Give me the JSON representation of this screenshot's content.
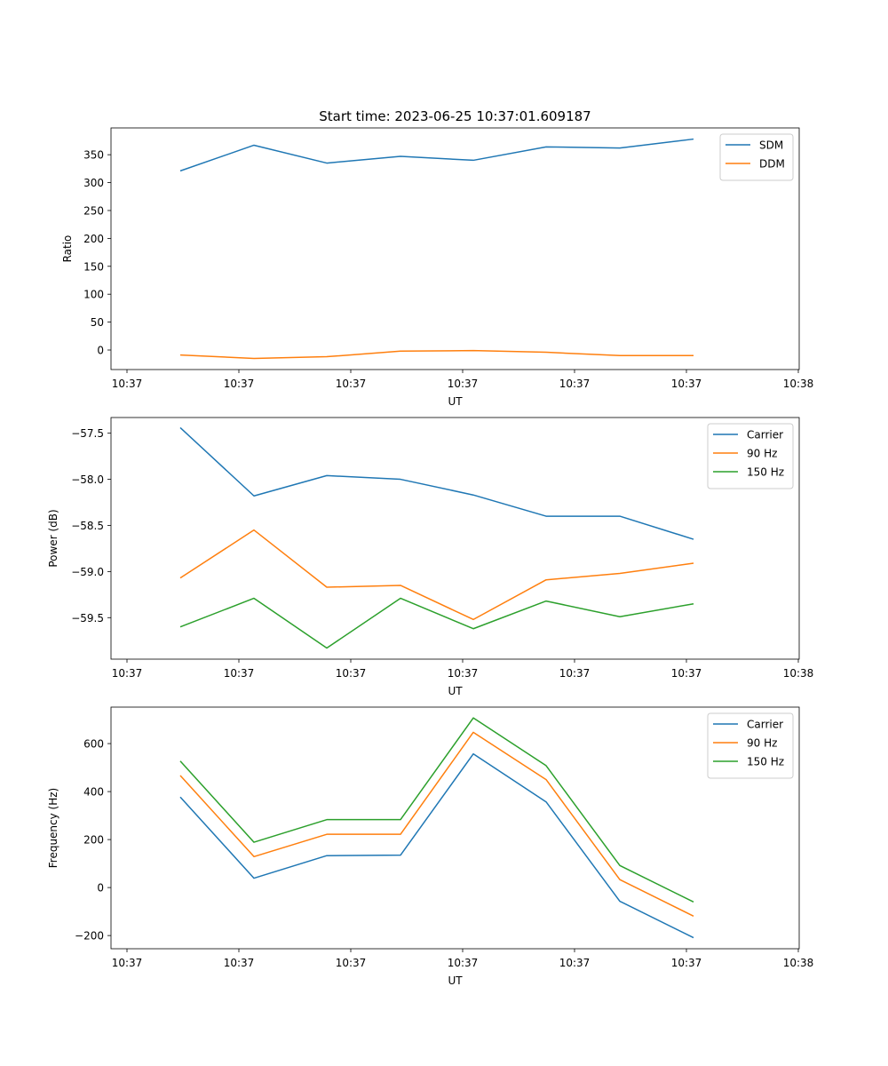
{
  "title": "Start time: 2023-06-25 10:37:01.609187",
  "chart_data": [
    {
      "type": "line",
      "xlabel": "UT",
      "ylabel": "Ratio",
      "x_tick_labels": [
        "10:37",
        "10:37",
        "10:37",
        "10:37",
        "10:37",
        "10:37",
        "10:38"
      ],
      "yticks": [
        0,
        50,
        100,
        150,
        200,
        250,
        300,
        350
      ],
      "ylim": [
        -35,
        398
      ],
      "legend_position": "top-right",
      "series": [
        {
          "name": "SDM",
          "color": "#1f77b4",
          "values": [
            321,
            367,
            335,
            347,
            340,
            364,
            362,
            378
          ]
        },
        {
          "name": "DDM",
          "color": "#ff7f0e",
          "values": [
            -9,
            -15,
            -12,
            -2,
            -1,
            -4,
            -10,
            -10
          ]
        }
      ]
    },
    {
      "type": "line",
      "xlabel": "UT",
      "ylabel": "Power (dB)",
      "x_tick_labels": [
        "10:37",
        "10:37",
        "10:37",
        "10:37",
        "10:37",
        "10:37",
        "10:38"
      ],
      "yticks": [
        -59.5,
        -59.0,
        -58.5,
        -58.0,
        -57.5
      ],
      "ytick_labels": [
        "−59.5",
        "−59.0",
        "−58.5",
        "−58.0",
        "−57.5"
      ],
      "ylim": [
        -59.95,
        -57.33
      ],
      "legend_position": "top-right",
      "series": [
        {
          "name": "Carrier",
          "color": "#1f77b4",
          "values": [
            -57.44,
            -58.18,
            -57.96,
            -58.0,
            -58.17,
            -58.4,
            -58.4,
            -58.65
          ]
        },
        {
          "name": "90 Hz",
          "color": "#ff7f0e",
          "values": [
            -59.07,
            -58.55,
            -59.17,
            -59.15,
            -59.52,
            -59.09,
            -59.02,
            -58.91
          ]
        },
        {
          "name": "150 Hz",
          "color": "#2ca02c",
          "values": [
            -59.6,
            -59.29,
            -59.83,
            -59.29,
            -59.62,
            -59.32,
            -59.49,
            -59.35
          ]
        }
      ]
    },
    {
      "type": "line",
      "xlabel": "UT",
      "ylabel": "Frequency (Hz)",
      "x_tick_labels": [
        "10:37",
        "10:37",
        "10:37",
        "10:37",
        "10:37",
        "10:37",
        "10:38"
      ],
      "yticks": [
        -200,
        0,
        200,
        400,
        600
      ],
      "ytick_labels": [
        "−200",
        "0",
        "200",
        "400",
        "600"
      ],
      "ylim": [
        -255,
        752
      ],
      "legend_position": "top-right",
      "series": [
        {
          "name": "Carrier",
          "color": "#1f77b4",
          "values": [
            377,
            39,
            133,
            135,
            557,
            357,
            -57,
            -209
          ]
        },
        {
          "name": "90 Hz",
          "color": "#ff7f0e",
          "values": [
            467,
            129,
            222,
            222,
            647,
            450,
            33,
            -119
          ]
        },
        {
          "name": "150 Hz",
          "color": "#2ca02c",
          "values": [
            527,
            189,
            283,
            283,
            707,
            508,
            92,
            -60
          ]
        }
      ]
    }
  ]
}
